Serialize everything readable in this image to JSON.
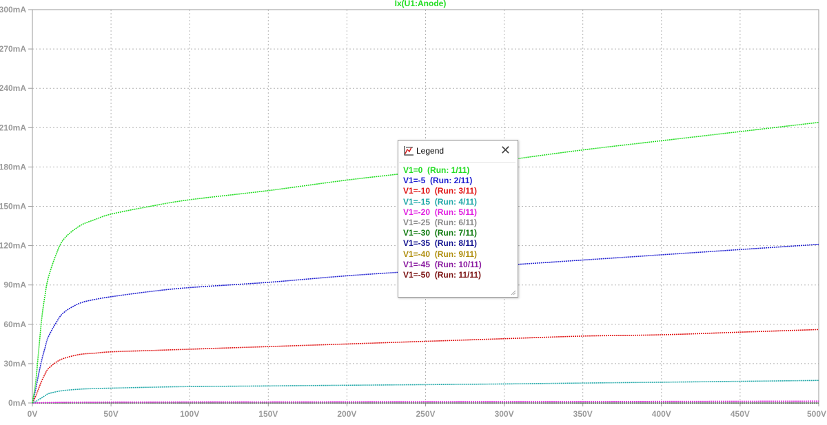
{
  "chart_data": {
    "type": "line",
    "title": "Ix(U1:Anode)",
    "xlabel": "",
    "ylabel": "",
    "xlim": [
      0,
      500
    ],
    "ylim": [
      0,
      300
    ],
    "x_ticks": [
      "0V",
      "50V",
      "100V",
      "150V",
      "200V",
      "250V",
      "300V",
      "350V",
      "400V",
      "450V",
      "500V"
    ],
    "y_ticks": [
      "0mA",
      "30mA",
      "60mA",
      "90mA",
      "120mA",
      "150mA",
      "180mA",
      "210mA",
      "240mA",
      "270mA",
      "300mA"
    ],
    "x_unit": "V",
    "y_unit": "mA",
    "grid": true,
    "legend_position": "floating-center",
    "x": [
      0,
      2,
      4,
      6,
      8,
      10,
      15,
      20,
      30,
      40,
      50,
      75,
      100,
      150,
      200,
      250,
      300,
      350,
      400,
      450,
      500
    ],
    "series": [
      {
        "name": "V1=0  (Run: 1/11)",
        "color": "#22dd22",
        "values": [
          0,
          15,
          40,
          65,
          82,
          95,
          113,
          125,
          135,
          140,
          144,
          150,
          155,
          162,
          170,
          177,
          185,
          193,
          200,
          207,
          214
        ]
      },
      {
        "name": "V1=-5  (Run: 2/11)",
        "color": "#1f1fd0",
        "values": [
          0,
          10,
          22,
          33,
          42,
          50,
          61,
          69,
          76,
          79,
          81,
          85,
          88,
          92,
          97,
          101,
          105,
          109,
          113,
          117,
          121
        ]
      },
      {
        "name": "V1=-10  (Run: 3/11)",
        "color": "#e01515",
        "values": [
          0,
          5,
          11,
          17,
          22,
          26,
          31,
          34,
          37,
          38,
          39,
          40,
          41,
          43,
          45,
          47,
          49,
          51,
          52,
          54,
          56
        ]
      },
      {
        "name": "V1=-15  (Run: 4/11)",
        "color": "#20a8a8",
        "values": [
          0,
          1,
          2.5,
          4,
          5.5,
          7,
          8.5,
          9.5,
          10.5,
          11,
          11.3,
          12,
          12.5,
          13,
          13.5,
          14,
          14.5,
          15.2,
          15.8,
          16.5,
          17.2
        ]
      },
      {
        "name": "V1=-20  (Run: 5/11)",
        "color": "#e020e0",
        "values": [
          0,
          0,
          0.1,
          0.2,
          0.3,
          0.3,
          0.4,
          0.5,
          0.6,
          0.6,
          0.7,
          0.7,
          0.8,
          0.8,
          0.9,
          1.0,
          1.1,
          1.1,
          1.2,
          1.3,
          1.4
        ]
      },
      {
        "name": "V1=-25  (Run: 6/11)",
        "color": "#8a8a8a",
        "values": [
          0,
          0,
          0,
          0,
          0,
          0,
          0,
          0,
          0,
          0,
          0.05,
          0.05,
          0.1,
          0.1,
          0.1,
          0.1,
          0.1,
          0.2,
          0.2,
          0.2,
          0.2
        ]
      },
      {
        "name": "V1=-30  (Run: 7/11)",
        "color": "#0f7a0f",
        "values": [
          0,
          0,
          0,
          0,
          0,
          0,
          0,
          0,
          0,
          0,
          0,
          0,
          0,
          0,
          0,
          0,
          0,
          0,
          0,
          0,
          0
        ]
      },
      {
        "name": "V1=-35  (Run: 8/11)",
        "color": "#141490",
        "values": [
          0,
          0,
          0,
          0,
          0,
          0,
          0,
          0,
          0,
          0,
          0,
          0,
          0,
          0,
          0,
          0,
          0,
          0,
          0,
          0,
          0
        ]
      },
      {
        "name": "V1=-40  (Run: 9/11)",
        "color": "#b08f10",
        "values": [
          0,
          0,
          0,
          0,
          0,
          0,
          0,
          0,
          0,
          0,
          0,
          0,
          0,
          0,
          0,
          0,
          0,
          0,
          0,
          0,
          0
        ]
      },
      {
        "name": "V1=-45  (Run: 10/11)",
        "color": "#8a1aa0",
        "values": [
          0,
          0,
          0,
          0,
          0,
          0,
          0,
          0,
          0,
          0,
          0,
          0,
          0,
          0,
          0,
          0,
          0,
          0,
          0,
          0,
          0
        ]
      },
      {
        "name": "V1=-50  (Run: 11/11)",
        "color": "#7a1010",
        "values": [
          0,
          0,
          0,
          0,
          0,
          0,
          0,
          0,
          0,
          0,
          0,
          0,
          0,
          0,
          0,
          0,
          0,
          0,
          0,
          0,
          0
        ]
      }
    ]
  },
  "legend": {
    "title": "Legend",
    "icon": "legend-chart-icon",
    "close_icon": "close-icon",
    "close_label": "✕"
  }
}
